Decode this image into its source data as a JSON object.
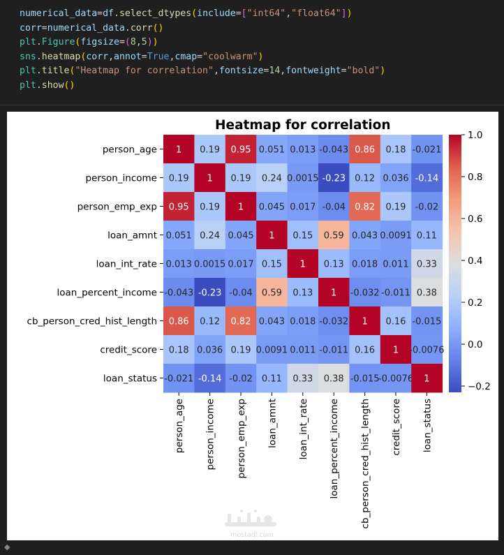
{
  "code_cell": {
    "lines": [
      [
        {
          "t": "numerical_data",
          "c": "#9cdcfe"
        },
        {
          "t": "=",
          "c": "#d4d4d4"
        },
        {
          "t": "df",
          "c": "#9cdcfe"
        },
        {
          "t": ".",
          "c": "#d4d4d4"
        },
        {
          "t": "select_dtypes",
          "c": "#dcdcaa"
        },
        {
          "t": "(",
          "c": "#ffd700"
        },
        {
          "t": "include",
          "c": "#9cdcfe"
        },
        {
          "t": "=",
          "c": "#d4d4d4"
        },
        {
          "t": "[",
          "c": "#da70d6"
        },
        {
          "t": "\"int64\"",
          "c": "#ce9178"
        },
        {
          "t": ",",
          "c": "#d4d4d4"
        },
        {
          "t": "\"float64\"",
          "c": "#ce9178"
        },
        {
          "t": "]",
          "c": "#da70d6"
        },
        {
          "t": ")",
          "c": "#ffd700"
        }
      ],
      [
        {
          "t": "corr",
          "c": "#9cdcfe"
        },
        {
          "t": "=",
          "c": "#d4d4d4"
        },
        {
          "t": "numerical_data",
          "c": "#9cdcfe"
        },
        {
          "t": ".",
          "c": "#d4d4d4"
        },
        {
          "t": "corr",
          "c": "#dcdcaa"
        },
        {
          "t": "()",
          "c": "#ffd700"
        }
      ],
      [
        {
          "t": "plt",
          "c": "#4ec9b0"
        },
        {
          "t": ".",
          "c": "#d4d4d4"
        },
        {
          "t": "Figure",
          "c": "#4ec9b0"
        },
        {
          "t": "(",
          "c": "#ffd700"
        },
        {
          "t": "figsize",
          "c": "#9cdcfe"
        },
        {
          "t": "=",
          "c": "#d4d4d4"
        },
        {
          "t": "(",
          "c": "#da70d6"
        },
        {
          "t": "8",
          "c": "#b5cea8"
        },
        {
          "t": ",",
          "c": "#d4d4d4"
        },
        {
          "t": "5",
          "c": "#b5cea8"
        },
        {
          "t": ")",
          "c": "#da70d6"
        },
        {
          "t": ")",
          "c": "#ffd700"
        }
      ],
      [
        {
          "t": "sns",
          "c": "#4ec9b0"
        },
        {
          "t": ".",
          "c": "#d4d4d4"
        },
        {
          "t": "heatmap",
          "c": "#dcdcaa"
        },
        {
          "t": "(",
          "c": "#ffd700"
        },
        {
          "t": "corr",
          "c": "#9cdcfe"
        },
        {
          "t": ",",
          "c": "#d4d4d4"
        },
        {
          "t": "annot",
          "c": "#9cdcfe"
        },
        {
          "t": "=",
          "c": "#d4d4d4"
        },
        {
          "t": "True",
          "c": "#569cd6"
        },
        {
          "t": ",",
          "c": "#d4d4d4"
        },
        {
          "t": "cmap",
          "c": "#9cdcfe"
        },
        {
          "t": "=",
          "c": "#d4d4d4"
        },
        {
          "t": "\"coolwarm\"",
          "c": "#ce9178"
        },
        {
          "t": ")",
          "c": "#ffd700"
        }
      ],
      [
        {
          "t": "plt",
          "c": "#4ec9b0"
        },
        {
          "t": ".",
          "c": "#d4d4d4"
        },
        {
          "t": "title",
          "c": "#dcdcaa"
        },
        {
          "t": "(",
          "c": "#ffd700"
        },
        {
          "t": "\"Heatmap for correlation\"",
          "c": "#ce9178"
        },
        {
          "t": ",",
          "c": "#d4d4d4"
        },
        {
          "t": "fontsize",
          "c": "#9cdcfe"
        },
        {
          "t": "=",
          "c": "#d4d4d4"
        },
        {
          "t": "14",
          "c": "#b5cea8"
        },
        {
          "t": ",",
          "c": "#d4d4d4"
        },
        {
          "t": "fontweight",
          "c": "#9cdcfe"
        },
        {
          "t": "=",
          "c": "#d4d4d4"
        },
        {
          "t": "\"bold\"",
          "c": "#ce9178"
        },
        {
          "t": ")",
          "c": "#ffd700"
        }
      ],
      [
        {
          "t": "plt",
          "c": "#4ec9b0"
        },
        {
          "t": ".",
          "c": "#d4d4d4"
        },
        {
          "t": "show",
          "c": "#dcdcaa"
        },
        {
          "t": "()",
          "c": "#ffd700"
        }
      ]
    ]
  },
  "chart_data": {
    "type": "heatmap",
    "title": "Heatmap for correlation",
    "labels": [
      "person_age",
      "person_income",
      "person_emp_exp",
      "loan_amnt",
      "loan_int_rate",
      "loan_percent_income",
      "cb_person_cred_hist_length",
      "credit_score",
      "loan_status"
    ],
    "values": [
      [
        1,
        0.19,
        0.95,
        0.051,
        0.013,
        -0.043,
        0.86,
        0.18,
        -0.021
      ],
      [
        0.19,
        1,
        0.19,
        0.24,
        0.0015,
        -0.23,
        0.12,
        0.036,
        -0.14
      ],
      [
        0.95,
        0.19,
        1,
        0.045,
        0.017,
        -0.04,
        0.82,
        0.19,
        -0.02
      ],
      [
        0.051,
        0.24,
        0.045,
        1,
        0.15,
        0.59,
        0.043,
        0.0091,
        0.11
      ],
      [
        0.013,
        0.0015,
        0.017,
        0.15,
        1,
        0.13,
        0.018,
        0.011,
        0.33
      ],
      [
        -0.043,
        -0.23,
        -0.04,
        0.59,
        0.13,
        1,
        -0.032,
        -0.011,
        0.38
      ],
      [
        0.86,
        0.12,
        0.82,
        0.043,
        0.018,
        -0.032,
        1,
        0.16,
        -0.015
      ],
      [
        0.18,
        0.036,
        0.19,
        0.0091,
        0.011,
        -0.011,
        0.16,
        1,
        -0.0076
      ],
      [
        -0.021,
        -0.14,
        -0.02,
        0.11,
        0.33,
        0.38,
        -0.015,
        -0.0076,
        1
      ]
    ],
    "annotations": [
      [
        "1",
        "0.19",
        "0.95",
        "0.051",
        "0.013",
        "-0.043",
        "0.86",
        "0.18",
        "-0.021"
      ],
      [
        "0.19",
        "1",
        "0.19",
        "0.24",
        "0.0015",
        "-0.23",
        "0.12",
        "0.036",
        "-0.14"
      ],
      [
        "0.95",
        "0.19",
        "1",
        "0.045",
        "0.017",
        "-0.04",
        "0.82",
        "0.19",
        "-0.02"
      ],
      [
        "0.051",
        "0.24",
        "0.045",
        "1",
        "0.15",
        "0.59",
        "0.043",
        "0.0091",
        "0.11"
      ],
      [
        "0.013",
        "0.0015",
        "0.017",
        "0.15",
        "1",
        "0.13",
        "0.018",
        "0.011",
        "0.33"
      ],
      [
        "-0.043",
        "-0.23",
        "-0.04",
        "0.59",
        "0.13",
        "1",
        "-0.032",
        "-0.011",
        "0.38"
      ],
      [
        "0.86",
        "0.12",
        "0.82",
        "0.043",
        "0.018",
        "-0.032",
        "1",
        "0.16",
        "-0.015"
      ],
      [
        "0.18",
        "0.036",
        "0.19",
        "0.0091",
        "0.011",
        "-0.011",
        "0.16",
        "1",
        "-0.0076"
      ],
      [
        "-0.021",
        "-0.14",
        "-0.02",
        "0.11",
        "0.33",
        "0.38",
        "-0.015",
        "-0.0076",
        "1"
      ]
    ],
    "colormap": "coolwarm",
    "vmin": -0.23,
    "vmax": 1.0,
    "colorbar_ticks": [
      1.0,
      0.8,
      0.6,
      0.4,
      0.2,
      0.0,
      -0.2
    ],
    "colorbar_tick_labels": [
      "1.0",
      "0.8",
      "0.6",
      "0.4",
      "0.2",
      "0.0",
      "−0.2"
    ]
  },
  "watermark": {
    "text": "mostaql.com"
  }
}
